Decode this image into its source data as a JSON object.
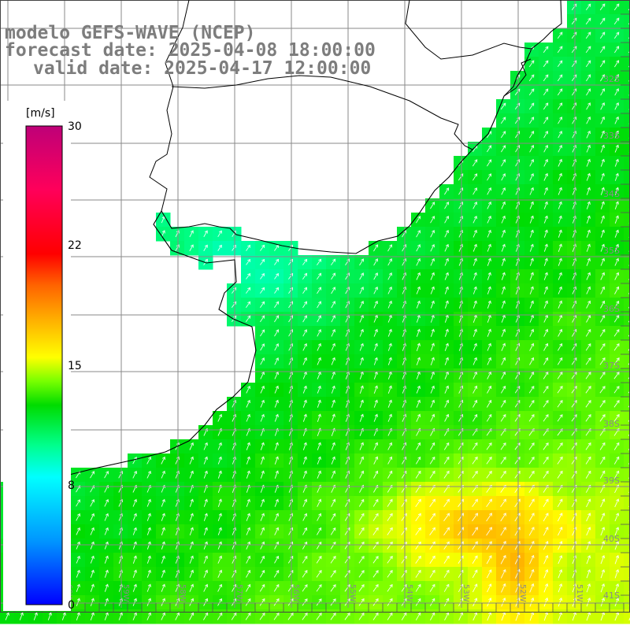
{
  "title": {
    "model": "modelo GEFS-WAVE (NCEP)",
    "forecast": "forecast date: 2025-04-08 18:00:00",
    "valid": "valid date: 2025-04-17 12:00:00"
  },
  "colorbar": {
    "unit": "[m/s]",
    "ticks": [
      "30",
      "22",
      "15",
      "8",
      "0"
    ],
    "tick_values": [
      30,
      22,
      15,
      8,
      0
    ],
    "colors": [
      "#0000ff",
      "#00a0ff",
      "#00ffff",
      "#00ff80",
      "#00d000",
      "#80ff00",
      "#ffff00",
      "#ffa000",
      "#ff5000",
      "#ff0000",
      "#ff0060",
      "#c00080"
    ]
  },
  "lat_labels": [
    "32S",
    "33S",
    "34S",
    "35S",
    "36S",
    "37S",
    "38S",
    "39S",
    "40S",
    "41S"
  ],
  "lon_labels": [
    "61W",
    "60W",
    "59W",
    "58W",
    "57W",
    "56W",
    "55W",
    "54W",
    "53W",
    "52W",
    "51W"
  ],
  "colors": {
    "land": "#ffffff",
    "grid": "#8a8a8a",
    "coast": "#000000",
    "title": "#7d7d7d",
    "arrows": "#ffffff"
  },
  "wind_field": {
    "range_ms": [
      0,
      30
    ],
    "typical_ms": [
      8,
      16
    ],
    "direction": "toward north-northeast"
  }
}
